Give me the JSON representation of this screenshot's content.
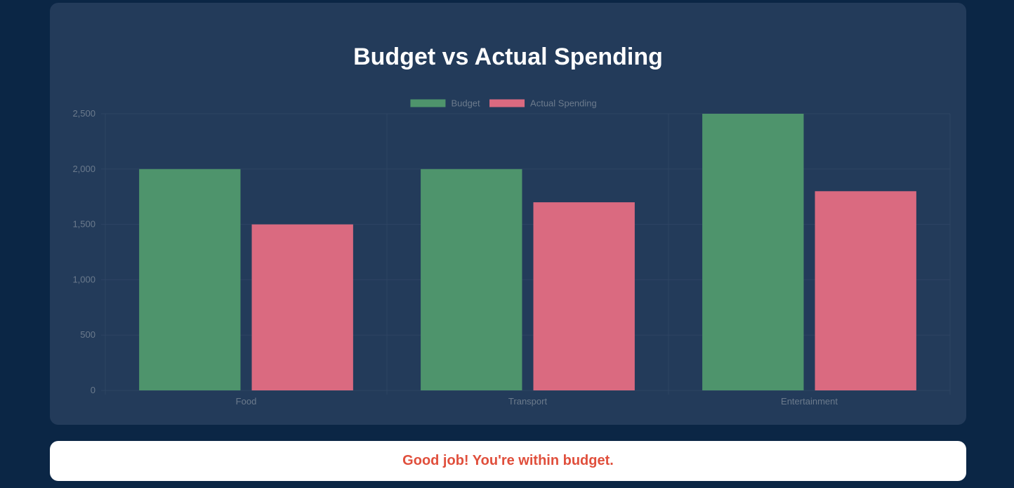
{
  "message": "Good job! You're within budget.",
  "colors": {
    "page_background": "#0b2645",
    "card_background": "#233b5a",
    "budget": "#4e946c",
    "actual": "#da6a80",
    "message": "#e04f3c",
    "axis_text": "#6b7a8c",
    "grid": "#2e4463"
  },
  "chart_data": {
    "type": "bar",
    "title": "Budget vs Actual Spending",
    "categories": [
      "Food",
      "Transport",
      "Entertainment"
    ],
    "series": [
      {
        "name": "Budget",
        "values": [
          2000,
          2000,
          2500
        ]
      },
      {
        "name": "Actual Spending",
        "values": [
          1500,
          1700,
          1800
        ]
      }
    ],
    "ylim": [
      0,
      2500
    ],
    "yticks": [
      0,
      500,
      1000,
      1500,
      2000,
      2500
    ],
    "ytick_labels": [
      "0",
      "500",
      "1,000",
      "1,500",
      "2,000",
      "2,500"
    ],
    "xlabel": "",
    "ylabel": "",
    "legend_position": "top-center",
    "grid": true
  }
}
